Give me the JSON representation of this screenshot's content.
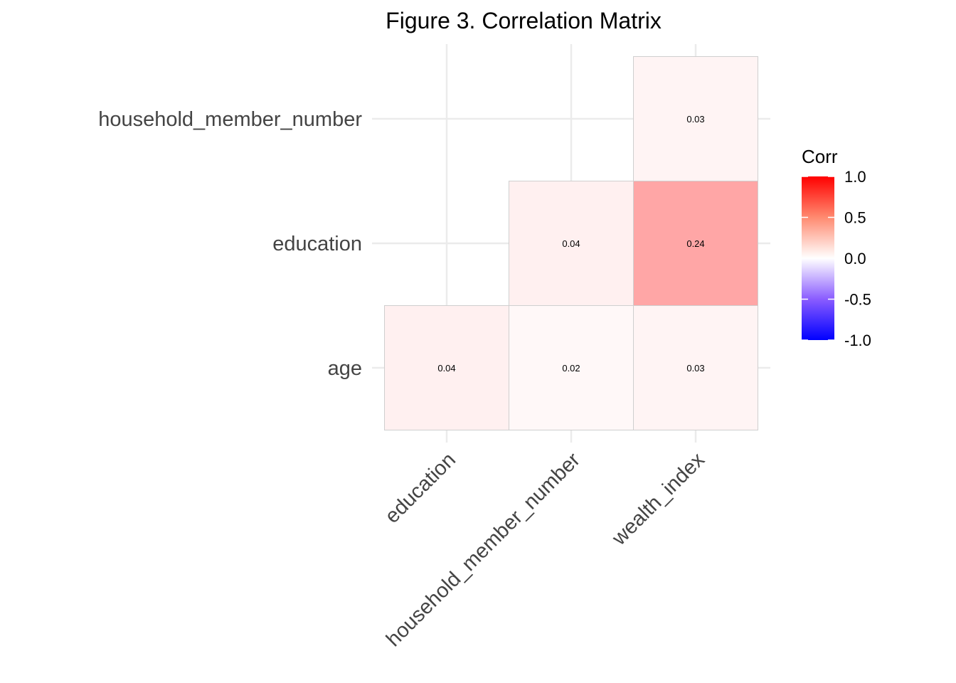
{
  "chart_data": {
    "type": "heatmap",
    "title": "Figure 3. Correlation Matrix",
    "xlabel": "",
    "ylabel": "",
    "x_categories": [
      "education",
      "household_member_number",
      "wealth_index"
    ],
    "y_categories": [
      "age",
      "education",
      "household_member_number"
    ],
    "cells": [
      {
        "x": "education",
        "y": "age",
        "value": 0.04,
        "label": "0.04"
      },
      {
        "x": "household_member_number",
        "y": "age",
        "value": 0.02,
        "label": "0.02"
      },
      {
        "x": "wealth_index",
        "y": "age",
        "value": 0.03,
        "label": "0.03"
      },
      {
        "x": "household_member_number",
        "y": "education",
        "value": 0.04,
        "label": "0.04"
      },
      {
        "x": "wealth_index",
        "y": "education",
        "value": 0.24,
        "label": "0.24"
      },
      {
        "x": "wealth_index",
        "y": "household_member_number",
        "value": 0.03,
        "label": "0.03"
      }
    ],
    "legend": {
      "title": "Corr",
      "placement": "right",
      "range": [
        -1.0,
        1.0
      ],
      "ticks": [
        "1.0",
        "0.5",
        "0.0",
        "-0.5",
        "-1.0"
      ],
      "tick_values": [
        1.0,
        0.5,
        0.0,
        -0.5,
        -1.0
      ]
    },
    "colors": {
      "low": "#0000ff",
      "mid": "#ffffff",
      "high": "#ff0000"
    },
    "grid": true,
    "x_tick_rotation": "45deg"
  }
}
